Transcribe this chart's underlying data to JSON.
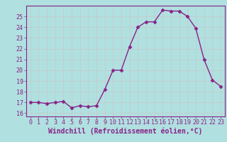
{
  "x": [
    0,
    1,
    2,
    3,
    4,
    5,
    6,
    7,
    8,
    9,
    10,
    11,
    12,
    13,
    14,
    15,
    16,
    17,
    18,
    19,
    20,
    21,
    22,
    23
  ],
  "y": [
    17.0,
    17.0,
    16.9,
    17.0,
    17.1,
    16.5,
    16.7,
    16.6,
    16.7,
    18.2,
    20.0,
    20.0,
    22.2,
    24.0,
    24.5,
    24.5,
    25.6,
    25.5,
    25.5,
    25.0,
    23.9,
    21.0,
    19.1,
    18.5
  ],
  "line_color": "#882288",
  "marker": "D",
  "markersize": 2.5,
  "linewidth": 1.0,
  "xlabel": "Windchill (Refroidissement éolien,°C)",
  "xlabel_fontsize": 7,
  "ylabel_ticks": [
    16,
    17,
    18,
    19,
    20,
    21,
    22,
    23,
    24,
    25
  ],
  "xtick_labels": [
    "0",
    "1",
    "2",
    "3",
    "4",
    "5",
    "6",
    "7",
    "8",
    "9",
    "10",
    "11",
    "12",
    "13",
    "14",
    "15",
    "16",
    "17",
    "18",
    "19",
    "20",
    "21",
    "22",
    "23"
  ],
  "ylim": [
    15.7,
    26.0
  ],
  "xlim": [
    -0.5,
    23.5
  ],
  "bg_color": "#b0e0e0",
  "grid_color": "#c8c8c8",
  "tick_fontsize": 6,
  "tick_color": "#882288",
  "label_color": "#882288",
  "spine_color": "#882288"
}
